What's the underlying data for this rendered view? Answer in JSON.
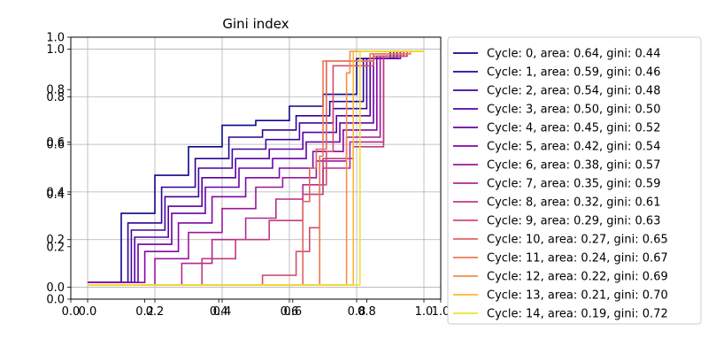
{
  "chart_data": {
    "type": "line",
    "title": "Gini index",
    "xlabel": "",
    "ylabel": "",
    "grid": true,
    "legend_position": "right",
    "xlim": [
      0.0,
      1.0
    ],
    "ylim": [
      0.0,
      1.0
    ],
    "axes": [
      {
        "x_ticks": [
          0.0,
          0.2,
          0.4,
          0.6,
          0.8,
          1.0
        ],
        "x_tick_labels": [
          "0.0",
          "0.2",
          "0.4",
          "0.6",
          "0.8",
          "1.0"
        ],
        "y_ticks": [
          0.0,
          0.2,
          0.4,
          0.6,
          0.8,
          1.0
        ],
        "y_tick_labels": [
          "0.0",
          "0.2",
          "0.4",
          "0.6",
          "0.8",
          "1.0"
        ],
        "xlim": [
          0.0,
          1.0
        ],
        "ylim": [
          0.0,
          1.0
        ]
      },
      {
        "x_ticks": [
          0.0,
          0.2,
          0.4,
          0.6,
          0.8,
          1.0
        ],
        "x_tick_labels": [
          "0.0",
          "0.2",
          "0.4",
          "0.6",
          "0.8",
          "1.0"
        ],
        "y_ticks": [
          0.0,
          0.2,
          0.4,
          0.6,
          0.8,
          1.0
        ],
        "y_tick_labels": [
          "0.0",
          "0.2",
          "0.4",
          "0.6",
          "0.8",
          "1.0"
        ],
        "xlim": [
          -0.05,
          1.05
        ],
        "ylim": [
          -0.05,
          1.05
        ]
      }
    ],
    "series": [
      {
        "name": "Cycle: 0, area: 0.64, gini: 0.44",
        "color": "#0d0887",
        "points": [
          [
            0,
            0.02
          ],
          [
            0.1,
            0.02
          ],
          [
            0.1,
            0.31
          ],
          [
            0.2,
            0.31
          ],
          [
            0.2,
            0.47
          ],
          [
            0.3,
            0.47
          ],
          [
            0.3,
            0.59
          ],
          [
            0.4,
            0.59
          ],
          [
            0.4,
            0.68
          ],
          [
            0.5,
            0.68
          ],
          [
            0.5,
            0.7
          ],
          [
            0.6,
            0.7
          ],
          [
            0.6,
            0.76
          ],
          [
            0.7,
            0.76
          ],
          [
            0.7,
            0.81
          ],
          [
            0.8,
            0.81
          ],
          [
            0.8,
            0.96
          ],
          [
            0.9,
            0.96
          ],
          [
            0.9,
            0.99
          ],
          [
            1.0,
            0.99
          ]
        ]
      },
      {
        "name": "Cycle: 1, area: 0.59, gini: 0.46",
        "color": "#2a0593",
        "points": [
          [
            0,
            0.02
          ],
          [
            0.12,
            0.02
          ],
          [
            0.12,
            0.27
          ],
          [
            0.22,
            0.27
          ],
          [
            0.22,
            0.42
          ],
          [
            0.32,
            0.42
          ],
          [
            0.32,
            0.54
          ],
          [
            0.42,
            0.54
          ],
          [
            0.42,
            0.63
          ],
          [
            0.52,
            0.63
          ],
          [
            0.52,
            0.66
          ],
          [
            0.62,
            0.66
          ],
          [
            0.62,
            0.72
          ],
          [
            0.72,
            0.72
          ],
          [
            0.72,
            0.78
          ],
          [
            0.82,
            0.78
          ],
          [
            0.82,
            0.96
          ],
          [
            0.91,
            0.96
          ],
          [
            0.91,
            0.99
          ],
          [
            1.0,
            0.99
          ]
        ]
      },
      {
        "name": "Cycle: 2, area: 0.54, gini: 0.48",
        "color": "#41049d",
        "points": [
          [
            0,
            0.02
          ],
          [
            0.13,
            0.02
          ],
          [
            0.13,
            0.24
          ],
          [
            0.23,
            0.24
          ],
          [
            0.23,
            0.38
          ],
          [
            0.33,
            0.38
          ],
          [
            0.33,
            0.5
          ],
          [
            0.43,
            0.5
          ],
          [
            0.43,
            0.58
          ],
          [
            0.53,
            0.58
          ],
          [
            0.53,
            0.62
          ],
          [
            0.63,
            0.62
          ],
          [
            0.63,
            0.69
          ],
          [
            0.73,
            0.69
          ],
          [
            0.73,
            0.75
          ],
          [
            0.83,
            0.75
          ],
          [
            0.83,
            0.96
          ],
          [
            0.92,
            0.96
          ],
          [
            0.92,
            0.99
          ],
          [
            1.0,
            0.99
          ]
        ]
      },
      {
        "name": "Cycle: 3, area: 0.50, gini: 0.50",
        "color": "#5601a4",
        "points": [
          [
            0,
            0.02
          ],
          [
            0.14,
            0.02
          ],
          [
            0.14,
            0.21
          ],
          [
            0.24,
            0.21
          ],
          [
            0.24,
            0.34
          ],
          [
            0.34,
            0.34
          ],
          [
            0.34,
            0.46
          ],
          [
            0.44,
            0.46
          ],
          [
            0.44,
            0.54
          ],
          [
            0.54,
            0.54
          ],
          [
            0.54,
            0.58
          ],
          [
            0.64,
            0.58
          ],
          [
            0.64,
            0.65
          ],
          [
            0.74,
            0.65
          ],
          [
            0.74,
            0.72
          ],
          [
            0.84,
            0.72
          ],
          [
            0.84,
            0.96
          ],
          [
            0.92,
            0.96
          ],
          [
            0.92,
            0.99
          ],
          [
            1.0,
            0.99
          ]
        ]
      },
      {
        "name": "Cycle: 4, area: 0.45, gini: 0.52",
        "color": "#6a00a8",
        "points": [
          [
            0,
            0.02
          ],
          [
            0.15,
            0.02
          ],
          [
            0.15,
            0.18
          ],
          [
            0.25,
            0.18
          ],
          [
            0.25,
            0.31
          ],
          [
            0.35,
            0.31
          ],
          [
            0.35,
            0.42
          ],
          [
            0.45,
            0.42
          ],
          [
            0.45,
            0.5
          ],
          [
            0.55,
            0.5
          ],
          [
            0.55,
            0.54
          ],
          [
            0.65,
            0.54
          ],
          [
            0.65,
            0.61
          ],
          [
            0.75,
            0.61
          ],
          [
            0.75,
            0.69
          ],
          [
            0.85,
            0.69
          ],
          [
            0.85,
            0.96
          ],
          [
            0.93,
            0.96
          ],
          [
            0.93,
            0.99
          ],
          [
            1.0,
            0.99
          ]
        ]
      },
      {
        "name": "Cycle: 5, area: 0.42, gini: 0.54",
        "color": "#8405a7",
        "points": [
          [
            0,
            0.02
          ],
          [
            0.17,
            0.02
          ],
          [
            0.17,
            0.15
          ],
          [
            0.27,
            0.15
          ],
          [
            0.27,
            0.27
          ],
          [
            0.37,
            0.27
          ],
          [
            0.37,
            0.38
          ],
          [
            0.47,
            0.38
          ],
          [
            0.47,
            0.46
          ],
          [
            0.57,
            0.46
          ],
          [
            0.57,
            0.5
          ],
          [
            0.67,
            0.5
          ],
          [
            0.67,
            0.57
          ],
          [
            0.76,
            0.57
          ],
          [
            0.76,
            0.66
          ],
          [
            0.86,
            0.66
          ],
          [
            0.86,
            0.97
          ],
          [
            0.93,
            0.97
          ],
          [
            0.93,
            0.99
          ],
          [
            1.0,
            0.99
          ]
        ]
      },
      {
        "name": "Cycle: 6, area: 0.38, gini: 0.57",
        "color": "#9c179e",
        "points": [
          [
            0,
            0.01
          ],
          [
            0.2,
            0.01
          ],
          [
            0.2,
            0.12
          ],
          [
            0.3,
            0.12
          ],
          [
            0.3,
            0.23
          ],
          [
            0.4,
            0.23
          ],
          [
            0.4,
            0.33
          ],
          [
            0.5,
            0.33
          ],
          [
            0.5,
            0.42
          ],
          [
            0.58,
            0.42
          ],
          [
            0.58,
            0.46
          ],
          [
            0.68,
            0.46
          ],
          [
            0.68,
            0.53
          ],
          [
            0.77,
            0.53
          ],
          [
            0.77,
            0.63
          ],
          [
            0.87,
            0.63
          ],
          [
            0.87,
            0.97
          ],
          [
            0.94,
            0.97
          ],
          [
            0.94,
            0.99
          ],
          [
            1.0,
            0.99
          ]
        ]
      },
      {
        "name": "Cycle: 7, area: 0.35, gini: 0.59",
        "color": "#b02a8f",
        "points": [
          [
            0,
            0.01
          ],
          [
            0.28,
            0.01
          ],
          [
            0.28,
            0.1
          ],
          [
            0.37,
            0.1
          ],
          [
            0.37,
            0.2
          ],
          [
            0.47,
            0.2
          ],
          [
            0.47,
            0.29
          ],
          [
            0.56,
            0.29
          ],
          [
            0.56,
            0.37
          ],
          [
            0.64,
            0.37
          ],
          [
            0.64,
            0.43
          ],
          [
            0.7,
            0.43
          ],
          [
            0.7,
            0.5
          ],
          [
            0.78,
            0.5
          ],
          [
            0.78,
            0.61
          ],
          [
            0.88,
            0.61
          ],
          [
            0.88,
            0.97
          ],
          [
            0.94,
            0.97
          ],
          [
            0.94,
            0.99
          ],
          [
            1.0,
            0.99
          ]
        ]
      },
      {
        "name": "Cycle: 8, area: 0.32, gini: 0.61",
        "color": "#c13b82",
        "points": [
          [
            0,
            0.01
          ],
          [
            0.34,
            0.01
          ],
          [
            0.34,
            0.12
          ],
          [
            0.44,
            0.12
          ],
          [
            0.44,
            0.2
          ],
          [
            0.54,
            0.2
          ],
          [
            0.54,
            0.28
          ],
          [
            0.64,
            0.28
          ],
          [
            0.64,
            0.39
          ],
          [
            0.7,
            0.39
          ],
          [
            0.7,
            0.54
          ],
          [
            0.79,
            0.54
          ],
          [
            0.79,
            0.59
          ],
          [
            0.88,
            0.59
          ],
          [
            0.88,
            0.97
          ],
          [
            0.95,
            0.97
          ],
          [
            0.95,
            0.99
          ],
          [
            1.0,
            0.99
          ]
        ]
      },
      {
        "name": "Cycle: 9, area: 0.29, gini: 0.63",
        "color": "#d14e72",
        "points": [
          [
            0,
            0.01
          ],
          [
            0.52,
            0.01
          ],
          [
            0.52,
            0.05
          ],
          [
            0.62,
            0.05
          ],
          [
            0.62,
            0.15
          ],
          [
            0.66,
            0.15
          ],
          [
            0.66,
            0.25
          ],
          [
            0.69,
            0.25
          ],
          [
            0.69,
            0.43
          ],
          [
            0.71,
            0.43
          ],
          [
            0.71,
            0.57
          ],
          [
            0.73,
            0.57
          ],
          [
            0.73,
            0.93
          ],
          [
            0.85,
            0.93
          ],
          [
            0.85,
            0.97
          ],
          [
            0.95,
            0.97
          ],
          [
            0.95,
            0.99
          ],
          [
            1.0,
            0.99
          ]
        ]
      },
      {
        "name": "Cycle: 10, area: 0.27, gini: 0.65",
        "color": "#e16462",
        "points": [
          [
            0,
            0.01
          ],
          [
            0.64,
            0.01
          ],
          [
            0.64,
            0.36
          ],
          [
            0.66,
            0.36
          ],
          [
            0.66,
            0.5
          ],
          [
            0.68,
            0.5
          ],
          [
            0.68,
            0.58
          ],
          [
            0.71,
            0.58
          ],
          [
            0.71,
            0.95
          ],
          [
            0.85,
            0.95
          ],
          [
            0.85,
            0.98
          ],
          [
            0.95,
            0.98
          ],
          [
            0.95,
            0.99
          ],
          [
            1.0,
            0.99
          ]
        ]
      },
      {
        "name": "Cycle: 11, area: 0.24, gini: 0.67",
        "color": "#ec7853",
        "points": [
          [
            0,
            0.01
          ],
          [
            0.69,
            0.01
          ],
          [
            0.69,
            0.55
          ],
          [
            0.7,
            0.55
          ],
          [
            0.7,
            0.95
          ],
          [
            0.84,
            0.95
          ],
          [
            0.84,
            0.98
          ],
          [
            0.96,
            0.98
          ],
          [
            0.96,
            0.99
          ],
          [
            1.0,
            0.99
          ]
        ]
      },
      {
        "name": "Cycle: 12, area: 0.22, gini: 0.69",
        "color": "#f68f44",
        "points": [
          [
            0,
            0.01
          ],
          [
            0.77,
            0.01
          ],
          [
            0.77,
            0.9
          ],
          [
            0.78,
            0.9
          ],
          [
            0.78,
            0.99
          ],
          [
            1.0,
            0.99
          ]
        ]
      },
      {
        "name": "Cycle: 13, area: 0.21, gini: 0.70",
        "color": "#fcb733",
        "points": [
          [
            0,
            0.01
          ],
          [
            0.79,
            0.01
          ],
          [
            0.79,
            0.99
          ],
          [
            1.0,
            0.99
          ]
        ]
      },
      {
        "name": "Cycle: 14, area: 0.19, gini: 0.72",
        "color": "#f0e12f",
        "points": [
          [
            0,
            0.01
          ],
          [
            0.81,
            0.01
          ],
          [
            0.81,
            0.99
          ],
          [
            1.0,
            0.99
          ]
        ]
      }
    ]
  }
}
